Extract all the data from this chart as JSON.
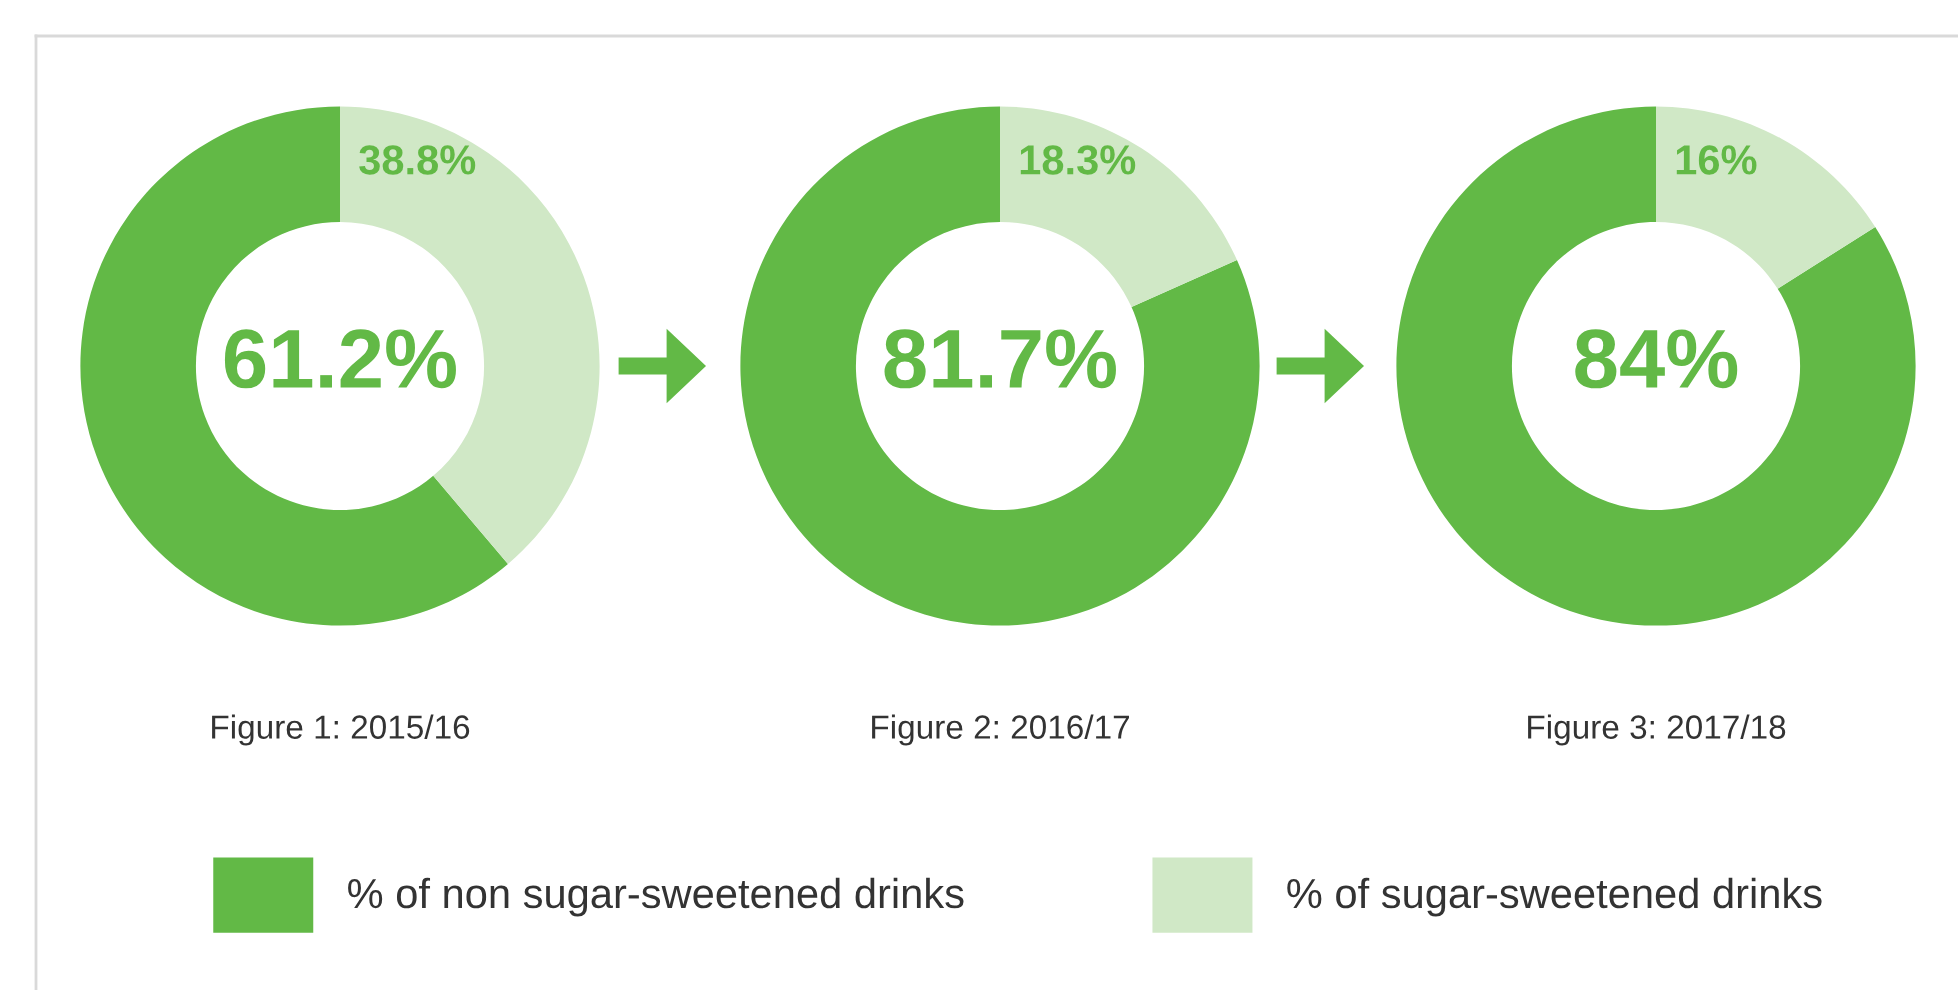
{
  "chart_data": [
    {
      "type": "donut",
      "title": "Figure 1: 2015/16",
      "categories": [
        "% of non sugar-sweetened drinks",
        "% of sugar-sweetened drinks"
      ],
      "values": [
        61.2,
        38.8
      ],
      "colors": [
        "#62b946",
        "#d0e8c6"
      ],
      "value_labels": [
        "61.2%",
        "38.8%"
      ],
      "legend": "bottom"
    },
    {
      "type": "donut",
      "title": "Figure 2: 2016/17",
      "values": [
        81.7,
        18.3
      ],
      "colors": [
        "#62b946",
        "#d0e8c6"
      ],
      "value_labels": [
        "81.7%",
        "18.3%"
      ]
    },
    {
      "type": "donut",
      "title": "Figure 3: 2017/18",
      "values": [
        84,
        16
      ],
      "colors": [
        "#62b946",
        "#d0e8c6"
      ],
      "value_labels": [
        "84%",
        "16%"
      ]
    }
  ]
}
